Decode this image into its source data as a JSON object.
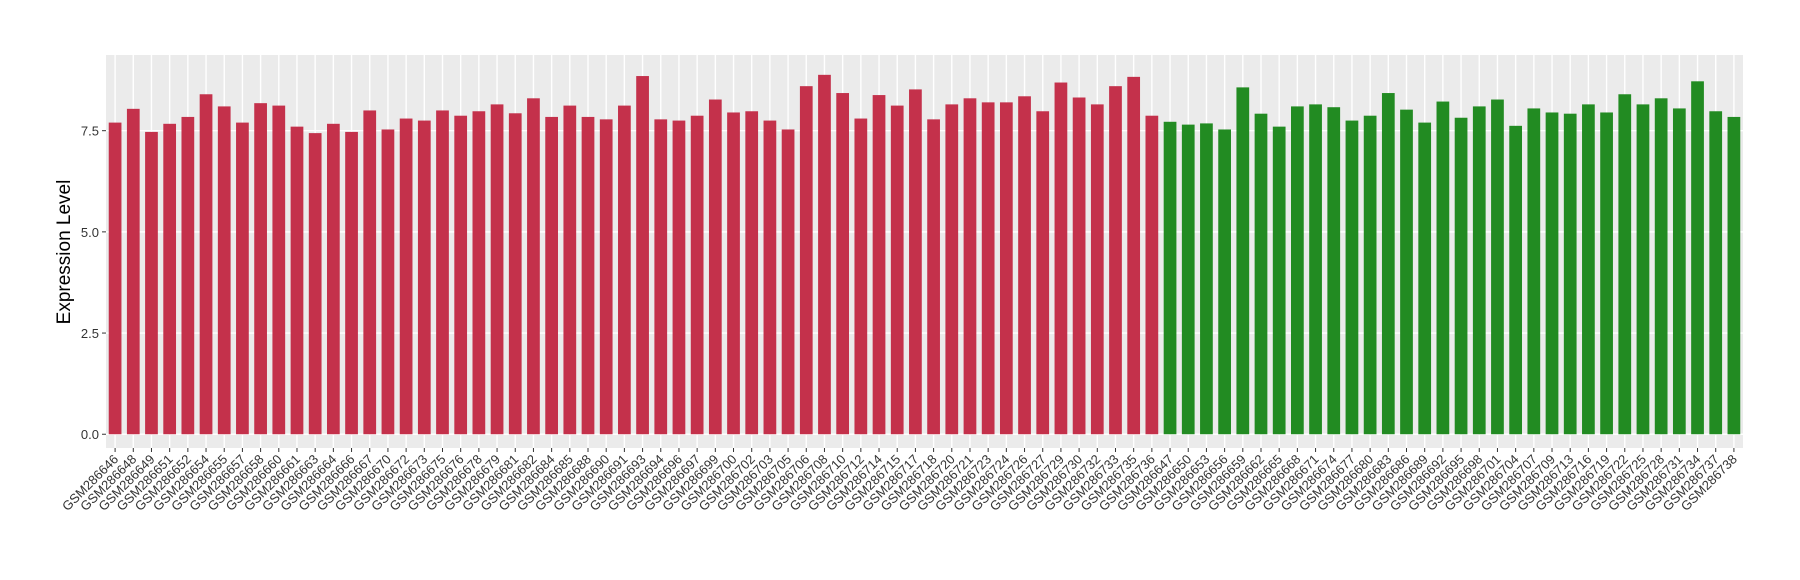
{
  "chart_data": {
    "type": "bar",
    "y_label": "Expression Level",
    "categories": [
      "GSM286646",
      "GSM286648",
      "GSM286649",
      "GSM286651",
      "GSM286652",
      "GSM286654",
      "GSM286655",
      "GSM286657",
      "GSM286658",
      "GSM286660",
      "GSM286661",
      "GSM286663",
      "GSM286664",
      "GSM286666",
      "GSM286667",
      "GSM286670",
      "GSM286672",
      "GSM286673",
      "GSM286675",
      "GSM286676",
      "GSM286678",
      "GSM286679",
      "GSM286681",
      "GSM286682",
      "GSM286684",
      "GSM286685",
      "GSM286688",
      "GSM286690",
      "GSM286691",
      "GSM286693",
      "GSM286694",
      "GSM286696",
      "GSM286697",
      "GSM286699",
      "GSM286700",
      "GSM286702",
      "GSM286703",
      "GSM286705",
      "GSM286706",
      "GSM286708",
      "GSM286710",
      "GSM286712",
      "GSM286714",
      "GSM286715",
      "GSM286717",
      "GSM286718",
      "GSM286720",
      "GSM286721",
      "GSM286723",
      "GSM286724",
      "GSM286726",
      "GSM286727",
      "GSM286729",
      "GSM286730",
      "GSM286732",
      "GSM286733",
      "GSM286735",
      "GSM286736",
      "GSM286647",
      "GSM286650",
      "GSM286653",
      "GSM286656",
      "GSM286659",
      "GSM286662",
      "GSM286665",
      "GSM286668",
      "GSM286671",
      "GSM286674",
      "GSM286677",
      "GSM286680",
      "GSM286683",
      "GSM286686",
      "GSM286689",
      "GSM286692",
      "GSM286695",
      "GSM286698",
      "GSM286701",
      "GSM286704",
      "GSM286707",
      "GSM286709",
      "GSM286713",
      "GSM286716",
      "GSM286719",
      "GSM286722",
      "GSM286725",
      "GSM286728",
      "GSM286731",
      "GSM286734",
      "GSM286737",
      "GSM286738"
    ],
    "values": [
      7.7,
      8.04,
      7.47,
      7.67,
      7.84,
      8.4,
      8.1,
      7.7,
      8.18,
      8.12,
      7.6,
      7.44,
      7.67,
      7.47,
      8.0,
      7.53,
      7.8,
      7.75,
      8.0,
      7.87,
      7.98,
      8.15,
      7.93,
      8.3,
      7.84,
      8.12,
      7.84,
      7.78,
      8.12,
      8.85,
      7.78,
      7.75,
      7.87,
      8.27,
      7.95,
      7.98,
      7.75,
      7.53,
      8.6,
      8.88,
      8.43,
      7.8,
      8.38,
      8.12,
      8.52,
      7.78,
      8.15,
      8.3,
      8.2,
      8.2,
      8.35,
      7.98,
      8.69,
      8.32,
      8.15,
      8.6,
      8.83,
      7.87,
      7.72,
      7.65,
      7.68,
      7.53,
      8.57,
      7.92,
      7.6,
      8.1,
      8.15,
      8.08,
      7.75,
      7.87,
      8.43,
      8.02,
      7.7,
      8.22,
      7.82,
      8.1,
      8.27,
      7.62,
      8.05,
      7.95,
      7.92,
      8.15,
      7.95,
      8.4,
      8.15,
      8.3,
      8.05,
      8.72,
      7.98,
      7.84
    ],
    "bar_colors": [
      "#c4314b",
      "#c4314b",
      "#c4314b",
      "#c4314b",
      "#c4314b",
      "#c4314b",
      "#c4314b",
      "#c4314b",
      "#c4314b",
      "#c4314b",
      "#c4314b",
      "#c4314b",
      "#c4314b",
      "#c4314b",
      "#c4314b",
      "#c4314b",
      "#c4314b",
      "#c4314b",
      "#c4314b",
      "#c4314b",
      "#c4314b",
      "#c4314b",
      "#c4314b",
      "#c4314b",
      "#c4314b",
      "#c4314b",
      "#c4314b",
      "#c4314b",
      "#c4314b",
      "#c4314b",
      "#c4314b",
      "#c4314b",
      "#c4314b",
      "#c4314b",
      "#c4314b",
      "#c4314b",
      "#c4314b",
      "#c4314b",
      "#c4314b",
      "#c4314b",
      "#c4314b",
      "#c4314b",
      "#c4314b",
      "#c4314b",
      "#c4314b",
      "#c4314b",
      "#c4314b",
      "#c4314b",
      "#c4314b",
      "#c4314b",
      "#c4314b",
      "#c4314b",
      "#c4314b",
      "#c4314b",
      "#c4314b",
      "#c4314b",
      "#c4314b",
      "#c4314b",
      "#228b22",
      "#228b22",
      "#228b22",
      "#228b22",
      "#228b22",
      "#228b22",
      "#228b22",
      "#228b22",
      "#228b22",
      "#228b22",
      "#228b22",
      "#228b22",
      "#228b22",
      "#228b22",
      "#228b22",
      "#228b22",
      "#228b22",
      "#228b22",
      "#228b22",
      "#228b22",
      "#228b22",
      "#228b22",
      "#228b22",
      "#228b22",
      "#228b22",
      "#228b22",
      "#228b22",
      "#228b22",
      "#228b22",
      "#228b22",
      "#228b22",
      "#228b22"
    ],
    "ylim": [
      -0.34,
      9.37
    ],
    "yticks": [
      {
        "value": 0,
        "label": "0.0"
      },
      2.5,
      {
        "value": 5,
        "label": "5.0"
      },
      7.5
    ],
    "grid": true
  }
}
